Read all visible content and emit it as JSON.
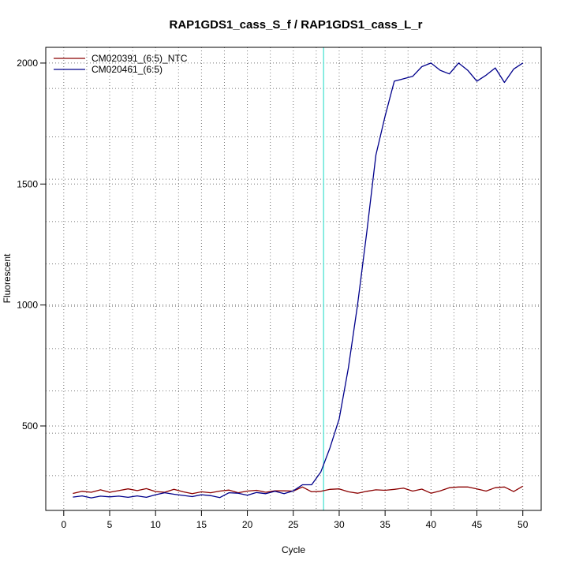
{
  "chart_data": {
    "type": "line",
    "title": "RAP1GDS1_cass_S_f / RAP1GDS1_cass_L_r",
    "xlabel": "Cycle",
    "ylabel": "Fluorescent",
    "xlim": [
      -1.96,
      52.0
    ],
    "ylim": [
      151,
      2065
    ],
    "x_ticks": [
      0,
      5,
      10,
      15,
      20,
      25,
      30,
      35,
      40,
      45,
      50
    ],
    "x_tick_labels": [
      "0",
      "5",
      "10",
      "15",
      "20",
      "25",
      "30",
      "35",
      "40",
      "45",
      "50"
    ],
    "y_ticks": [
      500,
      1000,
      1500,
      2000
    ],
    "y_tick_labels": [
      "500",
      "1000",
      "1500",
      "2000"
    ],
    "grid": true,
    "grid_x": [
      2.5,
      7.5,
      12.5,
      17.5,
      22.5,
      27.5,
      32.5,
      37.5,
      42.5,
      47.5
    ],
    "grid_y": [
      295,
      470,
      645,
      820,
      995,
      1170,
      1345,
      1520,
      1695,
      1895
    ],
    "threshold_x": 28.3,
    "threshold_color": "#40e0d0",
    "legend_position": "top-left",
    "x": [
      1,
      2,
      3,
      4,
      5,
      6,
      7,
      8,
      9,
      10,
      11,
      12,
      13,
      14,
      15,
      16,
      17,
      18,
      19,
      20,
      21,
      22,
      23,
      24,
      25,
      26,
      27,
      28,
      29,
      30,
      31,
      32,
      33,
      34,
      35,
      36,
      37,
      38,
      39,
      40,
      41,
      42,
      43,
      44,
      45,
      46,
      47,
      48,
      49,
      50
    ],
    "series": [
      {
        "name": "CM020391_(6:5)_NTC",
        "color": "#8b0000",
        "values": [
          221,
          230,
          226,
          236,
          226,
          233,
          240,
          233,
          241,
          229,
          226,
          238,
          228,
          220,
          228,
          224,
          231,
          235,
          224,
          231,
          234,
          226,
          232,
          232,
          231,
          248,
          228,
          230,
          238,
          240,
          228,
          222,
          230,
          236,
          234,
          238,
          243,
          231,
          239,
          222,
          232,
          245,
          248,
          248,
          240,
          231,
          245,
          248,
          229,
          251
        ]
      },
      {
        "name": "CM020461_(6:5)",
        "color": "#00008b",
        "values": [
          206,
          211,
          203,
          210,
          207,
          210,
          205,
          211,
          205,
          216,
          224,
          218,
          213,
          208,
          216,
          212,
          204,
          224,
          222,
          214,
          225,
          220,
          230,
          220,
          232,
          257,
          257,
          310,
          410,
          530,
          740,
          1000,
          1300,
          1620,
          1780,
          1925,
          1935,
          1945,
          1985,
          2000,
          1970,
          1955,
          2000,
          1970,
          1925,
          1950,
          1980,
          1920,
          1975,
          2000
        ]
      }
    ]
  }
}
